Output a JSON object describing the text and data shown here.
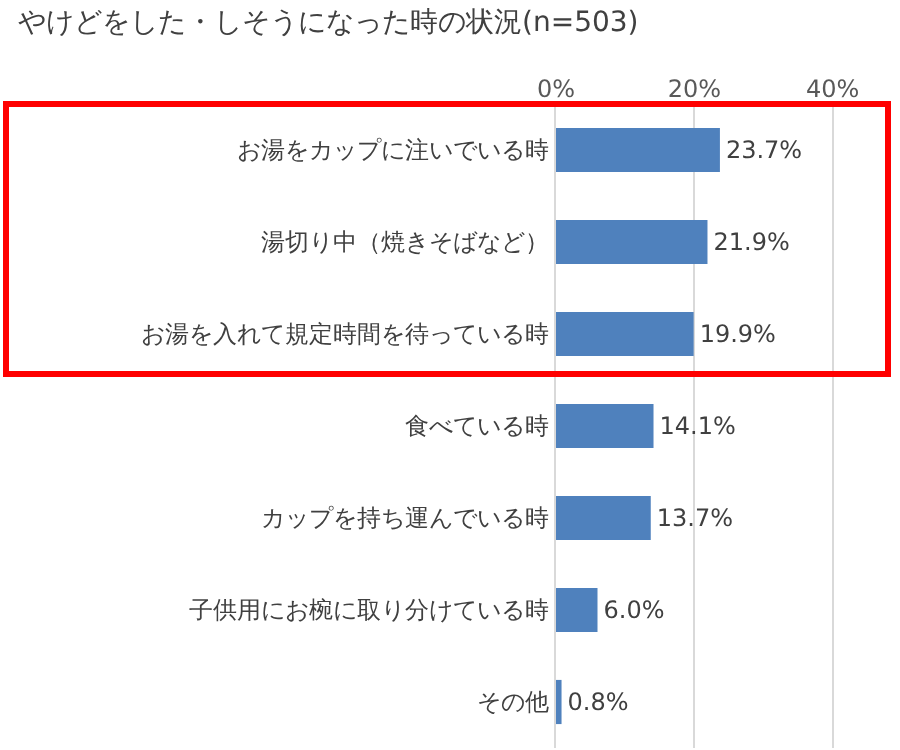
{
  "chart_data": {
    "type": "bar",
    "orientation": "horizontal",
    "title": "やけどをした・しそうになった時の状況(n=503)",
    "categories": [
      "お湯をカップに注いでいる時",
      "湯切り中（焼きそばなど）",
      "お湯を入れて規定時間を待っている時",
      "食べている時",
      "カップを持ち運んでいる時",
      "子供用にお椀に取り分けている時",
      "その他"
    ],
    "values": [
      23.7,
      21.9,
      19.9,
      14.1,
      13.7,
      6.0,
      0.8
    ],
    "value_labels": [
      "23.7%",
      "21.9%",
      "19.9%",
      "14.1%",
      "13.7%",
      "6.0%",
      "0.8%"
    ],
    "color": "#4f81bd",
    "xlim": [
      0,
      48
    ],
    "xticks": [
      {
        "value": 0,
        "label": "0%"
      },
      {
        "value": 20,
        "label": "20%"
      },
      {
        "value": 40,
        "label": "40%"
      }
    ],
    "grid": "x"
  }
}
